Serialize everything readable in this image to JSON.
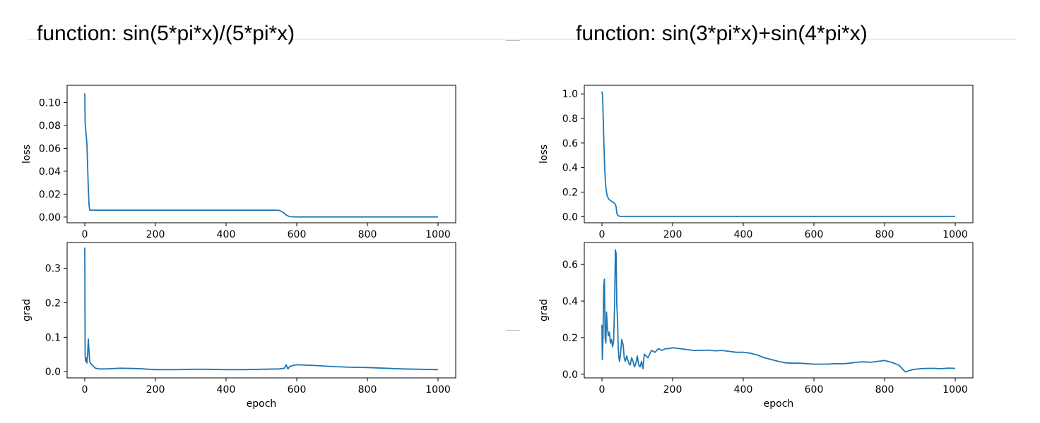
{
  "panels": [
    {
      "title": "function: sin(5*pi*x)/(5*pi*x)"
    },
    {
      "title": "function: sin(3*pi*x)+sin(4*pi*x)"
    }
  ],
  "chart_data": [
    {
      "type": "line",
      "panel": 0,
      "xlabel": "epoch",
      "ylabel": "loss",
      "xlim": [
        -50,
        1050
      ],
      "ylim": [
        -0.005,
        0.115
      ],
      "xticks": [
        0,
        200,
        400,
        600,
        800,
        1000
      ],
      "yticks": [
        0.0,
        0.02,
        0.04,
        0.06,
        0.08,
        0.1
      ],
      "ytick_labels": [
        "0.00",
        "0.02",
        "0.04",
        "0.06",
        "0.08",
        "0.10"
      ],
      "color": "#1f77b4",
      "series": [
        {
          "x": [
            0,
            1,
            3,
            6,
            8,
            10,
            12,
            14,
            20,
            100,
            300,
            540,
            550,
            560,
            570,
            580,
            600,
            800,
            1000
          ],
          "y": [
            0.108,
            0.082,
            0.075,
            0.064,
            0.045,
            0.025,
            0.011,
            0.006,
            0.006,
            0.006,
            0.006,
            0.006,
            0.0058,
            0.0045,
            0.0018,
            0.0003,
            0.0001,
            0.0001,
            0.0001
          ]
        }
      ]
    },
    {
      "type": "line",
      "panel": 0,
      "xlabel": "epoch",
      "ylabel": "grad",
      "xlim": [
        -50,
        1050
      ],
      "ylim": [
        -0.018,
        0.375
      ],
      "xticks": [
        0,
        200,
        400,
        600,
        800,
        1000
      ],
      "yticks": [
        0.0,
        0.1,
        0.2,
        0.3
      ],
      "ytick_labels": [
        "0.0",
        "0.1",
        "0.2",
        "0.3"
      ],
      "color": "#1f77b4",
      "series": [
        {
          "x": [
            0,
            1,
            2,
            4,
            6,
            8,
            10,
            12,
            14,
            16,
            20,
            25,
            30,
            40,
            60,
            100,
            150,
            200,
            260,
            300,
            350,
            400,
            450,
            500,
            550,
            565,
            570,
            575,
            580,
            590,
            600,
            650,
            700,
            750,
            800,
            850,
            900,
            950,
            1000
          ],
          "y": [
            0.36,
            0.05,
            0.03,
            0.04,
            0.025,
            0.05,
            0.095,
            0.06,
            0.03,
            0.025,
            0.02,
            0.015,
            0.01,
            0.008,
            0.008,
            0.01,
            0.009,
            0.006,
            0.006,
            0.007,
            0.007,
            0.006,
            0.006,
            0.007,
            0.008,
            0.01,
            0.02,
            0.008,
            0.015,
            0.018,
            0.02,
            0.018,
            0.015,
            0.013,
            0.012,
            0.01,
            0.008,
            0.007,
            0.006
          ]
        }
      ]
    },
    {
      "type": "line",
      "panel": 1,
      "xlabel": "epoch",
      "ylabel": "loss",
      "xlim": [
        -50,
        1050
      ],
      "ylim": [
        -0.05,
        1.07
      ],
      "xticks": [
        0,
        200,
        400,
        600,
        800,
        1000
      ],
      "yticks": [
        0.0,
        0.2,
        0.4,
        0.6,
        0.8,
        1.0
      ],
      "ytick_labels": [
        "0.0",
        "0.2",
        "0.4",
        "0.6",
        "0.8",
        "1.0"
      ],
      "color": "#1f77b4",
      "series": [
        {
          "x": [
            0,
            2,
            4,
            6,
            8,
            10,
            12,
            14,
            16,
            20,
            25,
            30,
            35,
            38,
            40,
            42,
            45,
            50,
            60,
            100,
            500,
            1000
          ],
          "y": [
            1.02,
            0.98,
            0.75,
            0.55,
            0.38,
            0.27,
            0.22,
            0.18,
            0.16,
            0.14,
            0.13,
            0.12,
            0.11,
            0.1,
            0.08,
            0.03,
            0.01,
            0.003,
            0.002,
            0.002,
            0.002,
            0.002
          ]
        }
      ]
    },
    {
      "type": "line",
      "panel": 1,
      "xlabel": "epoch",
      "ylabel": "grad",
      "xlim": [
        -50,
        1050
      ],
      "ylim": [
        -0.02,
        0.72
      ],
      "xticks": [
        0,
        200,
        400,
        600,
        800,
        1000
      ],
      "yticks": [
        0.0,
        0.2,
        0.4,
        0.6
      ],
      "ytick_labels": [
        "0.0",
        "0.2",
        "0.4",
        "0.6"
      ],
      "color": "#1f77b4",
      "series": [
        {
          "x": [
            0,
            1,
            3,
            5,
            7,
            9,
            11,
            13,
            15,
            18,
            21,
            24,
            27,
            30,
            33,
            36,
            38,
            40,
            42,
            44,
            46,
            48,
            50,
            53,
            56,
            60,
            63,
            66,
            70,
            73,
            76,
            80,
            84,
            88,
            92,
            96,
            100,
            104,
            108,
            112,
            116,
            120,
            130,
            140,
            150,
            160,
            170,
            180,
            190,
            200,
            220,
            240,
            260,
            280,
            300,
            320,
            340,
            360,
            380,
            400,
            420,
            440,
            460,
            480,
            500,
            520,
            540,
            560,
            580,
            600,
            620,
            640,
            660,
            680,
            700,
            720,
            740,
            760,
            780,
            800,
            820,
            840,
            850,
            855,
            860,
            870,
            880,
            900,
            920,
            940,
            960,
            980,
            1000
          ],
          "y": [
            0.27,
            0.08,
            0.2,
            0.48,
            0.52,
            0.2,
            0.17,
            0.34,
            0.26,
            0.21,
            0.23,
            0.17,
            0.19,
            0.15,
            0.18,
            0.4,
            0.68,
            0.66,
            0.38,
            0.3,
            0.15,
            0.09,
            0.07,
            0.12,
            0.19,
            0.16,
            0.09,
            0.07,
            0.1,
            0.08,
            0.06,
            0.05,
            0.09,
            0.07,
            0.04,
            0.06,
            0.1,
            0.05,
            0.04,
            0.07,
            0.03,
            0.11,
            0.09,
            0.13,
            0.12,
            0.14,
            0.13,
            0.14,
            0.14,
            0.145,
            0.14,
            0.135,
            0.13,
            0.13,
            0.132,
            0.128,
            0.13,
            0.125,
            0.12,
            0.12,
            0.115,
            0.105,
            0.09,
            0.08,
            0.07,
            0.062,
            0.06,
            0.06,
            0.058,
            0.055,
            0.055,
            0.055,
            0.058,
            0.057,
            0.06,
            0.065,
            0.068,
            0.065,
            0.07,
            0.075,
            0.065,
            0.05,
            0.03,
            0.02,
            0.012,
            0.02,
            0.025,
            0.03,
            0.032,
            0.032,
            0.03,
            0.033,
            0.032
          ]
        }
      ]
    }
  ]
}
